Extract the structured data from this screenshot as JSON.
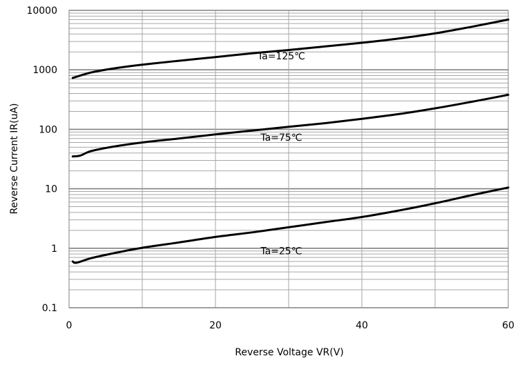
{
  "chart_data": {
    "type": "line",
    "xlabel": "Reverse Voltage   VR(V)",
    "ylabel": "Reverse Current   IR(uA)",
    "xlim": [
      0,
      60
    ],
    "ylim": [
      0.1,
      10000
    ],
    "yscale": "log",
    "grid": true,
    "x_ticks": [
      "0",
      "20",
      "40",
      "60"
    ],
    "y_ticks": [
      "0.1",
      "1",
      "10",
      "100",
      "1000",
      "10000"
    ],
    "series": [
      {
        "name": "Ta=125℃",
        "x": [
          0.5,
          3,
          6,
          10,
          15,
          20,
          25,
          30,
          35,
          40,
          45,
          50,
          55,
          60
        ],
        "y": [
          730,
          900,
          1050,
          1220,
          1420,
          1640,
          1900,
          2150,
          2480,
          2850,
          3350,
          4100,
          5300,
          7000
        ]
      },
      {
        "name": "Ta=75℃",
        "x": [
          0.5,
          1.5,
          3,
          6,
          10,
          15,
          20,
          25,
          30,
          35,
          40,
          45,
          50,
          55,
          60
        ],
        "y": [
          35,
          36,
          43,
          51,
          60,
          70,
          82,
          95,
          110,
          127,
          150,
          180,
          225,
          290,
          380
        ]
      },
      {
        "name": "Ta=25℃",
        "x": [
          0.5,
          1,
          3,
          6,
          10,
          15,
          20,
          25,
          30,
          35,
          40,
          45,
          50,
          55,
          60
        ],
        "y": [
          0.6,
          0.57,
          0.68,
          0.82,
          1.02,
          1.25,
          1.55,
          1.85,
          2.25,
          2.75,
          3.35,
          4.3,
          5.7,
          7.8,
          10.5
        ]
      }
    ]
  }
}
